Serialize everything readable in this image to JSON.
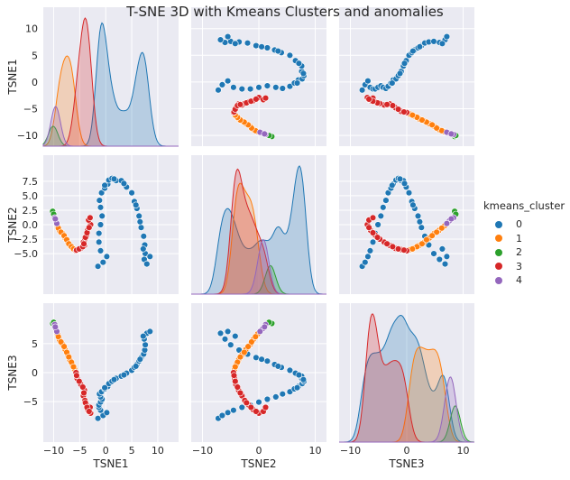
{
  "chart_data": {
    "type": "scatter",
    "title": "T-SNE 3D with Kmeans Clusters and anomalies",
    "variables": [
      "TSNE1",
      "TSNE2",
      "TSNE3"
    ],
    "limits": {
      "TSNE1": [
        -12,
        14
      ],
      "TSNE2": [
        -12,
        12
      ],
      "TSNE3": [
        -12,
        12
      ]
    },
    "ticks": {
      "TSNE1": [
        -10,
        -5,
        0,
        5,
        10
      ],
      "TSNE2": [
        -5.0,
        -2.5,
        0.0,
        2.5,
        5.0,
        7.5
      ],
      "TSNE2_x": [
        -10,
        0,
        10
      ],
      "TSNE3": [
        -5,
        0,
        5
      ],
      "TSNE3_x": [
        -10,
        0,
        10
      ]
    },
    "tick_labels": {
      "TSNE1": [
        "−10",
        "−5",
        "0",
        "5",
        "10"
      ],
      "TSNE2": [
        "−5.0",
        "−2.5",
        "0.0",
        "2.5",
        "5.0",
        "7.5"
      ],
      "TSNE2_x": [
        "−10",
        "0",
        "10"
      ],
      "TSNE3": [
        "−5",
        "0",
        "5"
      ],
      "TSNE3_x": [
        "−10",
        "0",
        "10"
      ]
    },
    "legend": {
      "title": "kmeans_cluster",
      "position": "right",
      "entries": [
        {
          "label": "0",
          "color": "#1f77b4"
        },
        {
          "label": "1",
          "color": "#ff7f0e"
        },
        {
          "label": "2",
          "color": "#2ca02c"
        },
        {
          "label": "3",
          "color": "#d62728"
        },
        {
          "label": "4",
          "color": "#9467bd"
        }
      ]
    },
    "series": [
      {
        "name": "0",
        "color": "#1f77b4",
        "points": [
          [
            -1.5,
            -7.2,
            -7.9
          ],
          [
            -0.5,
            -6.5,
            -7.4
          ],
          [
            0.2,
            -5.5,
            -6.9
          ],
          [
            -1.0,
            -4.5,
            -6.5
          ],
          [
            -1.3,
            -3.0,
            -6.0
          ],
          [
            -1.3,
            -1.5,
            -5.6
          ],
          [
            -1.0,
            0.0,
            -5.1
          ],
          [
            -0.7,
            1.5,
            -4.6
          ],
          [
            -1.0,
            3.0,
            -4.2
          ],
          [
            -1.2,
            4.2,
            -3.7
          ],
          [
            -0.8,
            5.5,
            -3.3
          ],
          [
            -0.2,
            6.3,
            -2.8
          ],
          [
            0.4,
            7.0,
            -2.4
          ],
          [
            0.6,
            7.7,
            -1.9
          ],
          [
            1.2,
            8.0,
            -1.5
          ],
          [
            2.0,
            7.6,
            -1.0
          ],
          [
            3.0,
            7.6,
            -0.6
          ],
          [
            4.0,
            6.5,
            -0.1
          ],
          [
            5.0,
            5.5,
            0.4
          ],
          [
            5.5,
            4.0,
            0.9
          ],
          [
            6.0,
            2.8,
            1.4
          ],
          [
            6.4,
            1.5,
            2.0
          ],
          [
            6.8,
            -0.5,
            2.6
          ],
          [
            7.3,
            -2.0,
            3.2
          ],
          [
            7.5,
            -3.5,
            3.9
          ],
          [
            7.6,
            -5.0,
            4.8
          ],
          [
            7.4,
            -6.0,
            5.8
          ],
          [
            7.9,
            -6.8,
            6.8
          ],
          [
            8.5,
            -5.5,
            7.1
          ],
          [
            7.2,
            -4.2,
            6.3
          ],
          [
            -0.2,
            6.8,
            -2.6
          ],
          [
            1.6,
            7.9,
            -1.2
          ],
          [
            3.5,
            7.1,
            -0.4
          ],
          [
            5.8,
            3.4,
            1.1
          ],
          [
            6.6,
            0.5,
            2.3
          ]
        ]
      },
      {
        "name": "1",
        "color": "#ff7f0e",
        "points": [
          [
            -9.3,
            -0.2,
            6.7
          ],
          [
            -8.9,
            -1.0,
            5.7
          ],
          [
            -8.3,
            -1.5,
            4.9
          ],
          [
            -7.8,
            -2.3,
            4.0
          ],
          [
            -7.3,
            -3.0,
            3.1
          ],
          [
            -6.9,
            -3.6,
            2.2
          ],
          [
            -6.4,
            -4.0,
            1.4
          ],
          [
            -6.0,
            -4.3,
            0.6
          ],
          [
            -9.1,
            -0.6,
            6.2
          ],
          [
            -8.6,
            -1.3,
            5.3
          ],
          [
            -8.0,
            -1.9,
            4.5
          ],
          [
            -7.5,
            -2.6,
            3.5
          ],
          [
            -7.1,
            -3.3,
            2.7
          ],
          [
            -6.6,
            -3.8,
            1.8
          ],
          [
            -6.2,
            -4.2,
            1.0
          ]
        ]
      },
      {
        "name": "2",
        "color": "#2ca02c",
        "points": [
          [
            -10.2,
            2.3,
            8.5
          ],
          [
            -10.0,
            1.8,
            8.7
          ]
        ]
      },
      {
        "name": "3",
        "color": "#d62728",
        "points": [
          [
            -5.7,
            -4.5,
            0.0
          ],
          [
            -5.5,
            -4.3,
            -1.0
          ],
          [
            -4.8,
            -4.1,
            -2.0
          ],
          [
            -4.1,
            -3.6,
            -3.0
          ],
          [
            -4.3,
            -3.0,
            -4.0
          ],
          [
            -4.0,
            -2.5,
            -4.8
          ],
          [
            -3.7,
            -1.8,
            -5.6
          ],
          [
            -3.5,
            -1.0,
            -6.4
          ],
          [
            -2.9,
            0.0,
            -7.0
          ],
          [
            -3.3,
            0.8,
            -6.7
          ],
          [
            -3.0,
            1.2,
            -6.0
          ],
          [
            -5.6,
            -4.4,
            -0.5
          ],
          [
            -5.1,
            -4.2,
            -1.5
          ],
          [
            -4.4,
            -3.8,
            -2.5
          ],
          [
            -4.2,
            -3.3,
            -3.5
          ],
          [
            -3.9,
            -2.2,
            -5.2
          ],
          [
            -3.6,
            -1.4,
            -6.0
          ],
          [
            -3.2,
            -0.5,
            -6.7
          ]
        ]
      },
      {
        "name": "4",
        "color": "#9467bd",
        "points": [
          [
            -9.8,
            1.2,
            8.3
          ],
          [
            -9.6,
            0.7,
            7.6
          ],
          [
            -9.4,
            0.2,
            7.1
          ],
          [
            -9.7,
            1.0,
            7.9
          ]
        ]
      }
    ]
  }
}
